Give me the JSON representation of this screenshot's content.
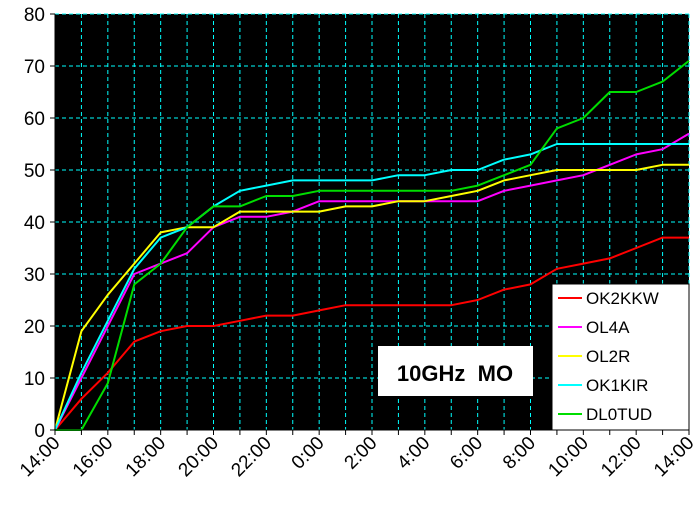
{
  "chart_data": {
    "type": "line",
    "title": "10GHz  MO",
    "xlabel": "",
    "ylabel": "",
    "ylim": [
      0,
      80
    ],
    "yticks": [
      "0",
      "10",
      "20",
      "30",
      "40",
      "50",
      "60",
      "70",
      "80"
    ],
    "x": [
      "14:00",
      "15:00",
      "16:00",
      "17:00",
      "18:00",
      "19:00",
      "20:00",
      "21:00",
      "22:00",
      "23:00",
      "0:00",
      "1:00",
      "2:00",
      "3:00",
      "4:00",
      "5:00",
      "6:00",
      "7:00",
      "8:00",
      "9:00",
      "10:00",
      "11:00",
      "12:00",
      "13:00",
      "14:00"
    ],
    "xtick_labels": [
      "14:00",
      "16:00",
      "18:00",
      "20:00",
      "22:00",
      "0:00",
      "2:00",
      "4:00",
      "6:00",
      "8:00",
      "10:00",
      "12:00",
      "14:00"
    ],
    "grid": true,
    "legend_position": "bottom-right",
    "colors": {
      "plot_background": "#000000",
      "grid": "#00ffff",
      "page_background": "#ffffff"
    },
    "series": [
      {
        "name": "OK2KKW",
        "color": "#ff0000",
        "values": [
          0,
          6,
          11,
          17,
          19,
          20,
          20,
          21,
          22,
          22,
          23,
          24,
          24,
          24,
          24,
          24,
          25,
          27,
          28,
          31,
          32,
          33,
          35,
          37,
          37
        ]
      },
      {
        "name": "OL4A",
        "color": "#ff00ff",
        "values": [
          0,
          10,
          20,
          30,
          32,
          34,
          39,
          41,
          41,
          42,
          44,
          44,
          44,
          44,
          44,
          44,
          44,
          46,
          47,
          48,
          49,
          51,
          53,
          54,
          57
        ]
      },
      {
        "name": "OL2R",
        "color": "#ffff00",
        "values": [
          0,
          19,
          26,
          32,
          38,
          39,
          39,
          42,
          42,
          42,
          42,
          43,
          43,
          44,
          44,
          45,
          46,
          48,
          49,
          50,
          50,
          50,
          50,
          51,
          51
        ]
      },
      {
        "name": "OK1KIR",
        "color": "#00ffff",
        "values": [
          0,
          11,
          21,
          31,
          37,
          39,
          43,
          46,
          47,
          48,
          48,
          48,
          48,
          49,
          49,
          50,
          50,
          52,
          53,
          55,
          55,
          55,
          55,
          55,
          55
        ]
      },
      {
        "name": "DL0TUD",
        "color": "#00dd00",
        "values": [
          0,
          0,
          9,
          28,
          32,
          39,
          43,
          43,
          45,
          45,
          46,
          46,
          46,
          46,
          46,
          46,
          47,
          49,
          51,
          58,
          60,
          65,
          65,
          67,
          71
        ]
      }
    ]
  }
}
